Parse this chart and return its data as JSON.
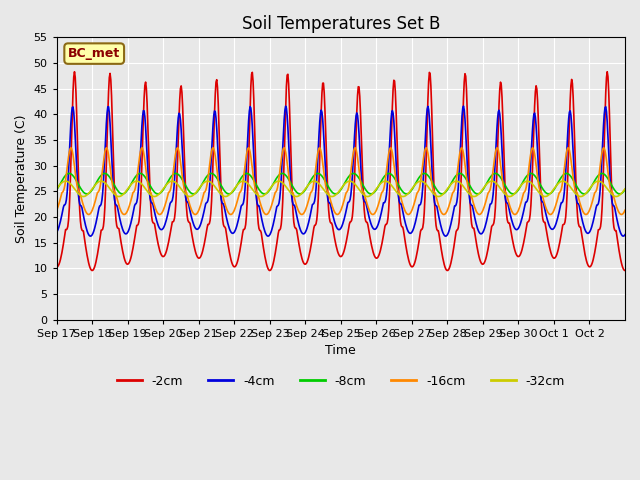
{
  "title": "Soil Temperatures Set B",
  "xlabel": "Time",
  "ylabel": "Soil Temperature (C)",
  "annotation": "BC_met",
  "ylim": [
    0,
    55
  ],
  "yticks": [
    0,
    5,
    10,
    15,
    20,
    25,
    30,
    35,
    40,
    45,
    50,
    55
  ],
  "x_labels": [
    "Sep 17",
    "Sep 18",
    "Sep 19",
    "Sep 20",
    "Sep 21",
    "Sep 22",
    "Sep 23",
    "Sep 24",
    "Sep 25",
    "Sep 26",
    "Sep 27",
    "Sep 28",
    "Sep 29",
    "Sep 30",
    "Oct 1",
    "Oct 2"
  ],
  "series": {
    "-2cm": {
      "color": "#dd0000",
      "lw": 1.2
    },
    "-4cm": {
      "color": "#0000dd",
      "lw": 1.2
    },
    "-8cm": {
      "color": "#00cc00",
      "lw": 1.2
    },
    "-16cm": {
      "color": "#ff8800",
      "lw": 1.2
    },
    "-32cm": {
      "color": "#cccc00",
      "lw": 1.2
    }
  },
  "legend_order": [
    "-2cm",
    "-4cm",
    "-8cm",
    "-16cm",
    "-32cm"
  ],
  "bg_color": "#e8e8e8",
  "plot_bg_color": "#e8e8e8",
  "figsize": [
    6.4,
    4.8
  ],
  "dpi": 100
}
